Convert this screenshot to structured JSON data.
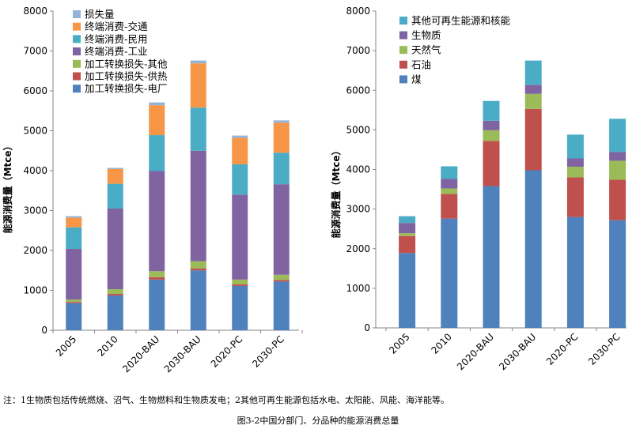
{
  "chart_data": [
    {
      "type": "bar",
      "stacked": true,
      "categories": [
        "2005",
        "2010",
        "2020-BAU",
        "2030-BAU",
        "2020-PC",
        "2030-PC"
      ],
      "ylabel": "能源消费量（Mtce）",
      "ylim": [
        0,
        8000
      ],
      "yticks": [
        0,
        1000,
        2000,
        3000,
        4000,
        5000,
        6000,
        7000,
        8000
      ],
      "grid": false,
      "legend_position": "top-left",
      "series": [
        {
          "name": "加工转换损失-电厂",
          "color": "#4f81bd",
          "values": [
            680,
            870,
            1270,
            1500,
            1110,
            1220
          ]
        },
        {
          "name": "加工转换损失-供热",
          "color": "#c0504d",
          "values": [
            30,
            40,
            60,
            50,
            40,
            40
          ]
        },
        {
          "name": "加工转换损失-其他",
          "color": "#9bbb59",
          "values": [
            60,
            120,
            150,
            180,
            120,
            130
          ]
        },
        {
          "name": "终端消费-工业",
          "color": "#8064a2",
          "values": [
            1270,
            2020,
            2510,
            2770,
            2130,
            2270
          ]
        },
        {
          "name": "终端消费-民用",
          "color": "#4bacc6",
          "values": [
            540,
            620,
            900,
            1080,
            760,
            790
          ]
        },
        {
          "name": "终端消费-交通",
          "color": "#f79646",
          "values": [
            240,
            370,
            750,
            1110,
            660,
            750
          ]
        },
        {
          "name": "损失量",
          "color": "#95b3d7",
          "values": [
            40,
            30,
            70,
            70,
            60,
            60
          ]
        }
      ]
    },
    {
      "type": "bar",
      "stacked": true,
      "categories": [
        "2005",
        "2010",
        "2020-BAU",
        "2030-BAU",
        "2020-PC",
        "2030-PC"
      ],
      "ylabel": "能源消费量（Mtce）",
      "ylim": [
        0,
        8000
      ],
      "yticks": [
        0,
        1000,
        2000,
        3000,
        4000,
        5000,
        6000,
        7000,
        8000
      ],
      "grid": false,
      "legend_position": "top-left",
      "series": [
        {
          "name": "煤",
          "color": "#4f81bd",
          "values": [
            1890,
            2760,
            3580,
            3980,
            2800,
            2720
          ]
        },
        {
          "name": "石油",
          "color": "#c0504d",
          "values": [
            430,
            620,
            1140,
            1550,
            1000,
            1020
          ]
        },
        {
          "name": "天然气",
          "color": "#9bbb59",
          "values": [
            70,
            140,
            270,
            380,
            270,
            480
          ]
        },
        {
          "name": "生物质",
          "color": "#8064a2",
          "values": [
            260,
            240,
            240,
            230,
            210,
            220
          ]
        },
        {
          "name": "其他可再生能源和核能",
          "color": "#4bacc6",
          "values": [
            170,
            320,
            500,
            610,
            600,
            840
          ]
        }
      ]
    }
  ],
  "note": "注：1生物质包括传统燃烧、沼气、生物燃料和生物质发电；2其他可再生能源包括水电、太阳能、风能、海洋能等。",
  "caption": "图3-2中国分部门、分品种的能源消费总量"
}
